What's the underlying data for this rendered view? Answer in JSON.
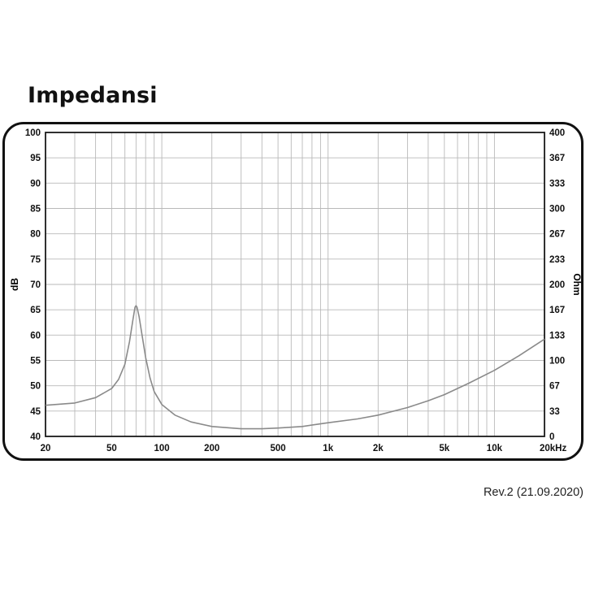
{
  "page": {
    "title": "Impedansi",
    "revision": "Rev.2 (21.09.2020)"
  },
  "chart_data": {
    "type": "line",
    "title": "Impedansi",
    "x_scale": "log",
    "xlim": [
      20,
      20000
    ],
    "x_ticks": [
      {
        "value": 20,
        "label": "20"
      },
      {
        "value": 50,
        "label": "50"
      },
      {
        "value": 100,
        "label": "100"
      },
      {
        "value": 200,
        "label": "200"
      },
      {
        "value": 500,
        "label": "500"
      },
      {
        "value": 1000,
        "label": "1k"
      },
      {
        "value": 2000,
        "label": "2k"
      },
      {
        "value": 5000,
        "label": "5k"
      },
      {
        "value": 10000,
        "label": "10k"
      },
      {
        "value": 20000,
        "label": "20kHz"
      }
    ],
    "y_left": {
      "label": "dB",
      "lim": [
        40,
        100
      ],
      "ticks": [
        "100",
        "95",
        "90",
        "85",
        "80",
        "75",
        "70",
        "65",
        "60",
        "55",
        "50",
        "45",
        "40"
      ]
    },
    "y_right": {
      "label": "Ohm",
      "lim": [
        0,
        400
      ],
      "ticks": [
        "400",
        "367",
        "333",
        "300",
        "267",
        "233",
        "200",
        "167",
        "133",
        "100",
        "67",
        "33",
        "0"
      ]
    },
    "grid": true,
    "line_color": "#8a8a8a",
    "series": [
      {
        "axis": "right",
        "points": [
          [
            20,
            41
          ],
          [
            30,
            44
          ],
          [
            40,
            51
          ],
          [
            50,
            63
          ],
          [
            55,
            75
          ],
          [
            60,
            95
          ],
          [
            64,
            125
          ],
          [
            67,
            153
          ],
          [
            69,
            170
          ],
          [
            70,
            172
          ],
          [
            71,
            170
          ],
          [
            73,
            158
          ],
          [
            76,
            134
          ],
          [
            80,
            104
          ],
          [
            85,
            77
          ],
          [
            90,
            59
          ],
          [
            100,
            42
          ],
          [
            120,
            28
          ],
          [
            150,
            19
          ],
          [
            200,
            13
          ],
          [
            300,
            10
          ],
          [
            400,
            10
          ],
          [
            500,
            11
          ],
          [
            700,
            13
          ],
          [
            1000,
            18
          ],
          [
            1500,
            23
          ],
          [
            2000,
            28
          ],
          [
            3000,
            38
          ],
          [
            4000,
            47
          ],
          [
            5000,
            55
          ],
          [
            7000,
            70
          ],
          [
            10000,
            87
          ],
          [
            14000,
            106
          ],
          [
            20000,
            128
          ]
        ]
      }
    ]
  }
}
